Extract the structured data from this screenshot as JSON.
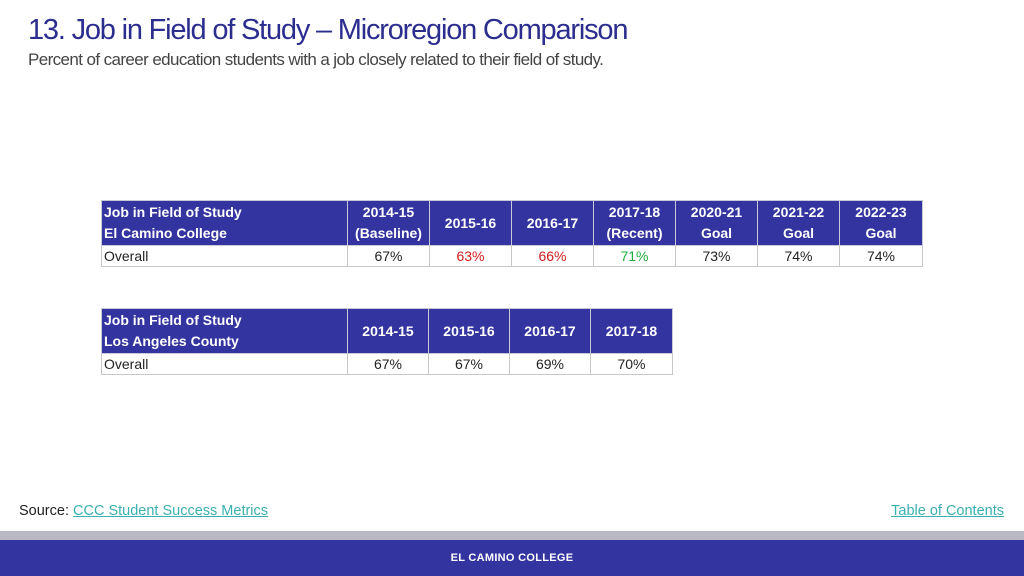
{
  "title": "13. Job in Field of Study – Microregion Comparison",
  "subtitle": "Percent of career education students with a job closely related to their field of study.",
  "table1": {
    "header_line1": "Job in Field of Study",
    "header_line2": "El Camino College",
    "columns": [
      {
        "line1": "2014-15",
        "line2": "(Baseline)"
      },
      {
        "line1": "2015-16",
        "line2": ""
      },
      {
        "line1": "2016-17",
        "line2": ""
      },
      {
        "line1": "2017-18",
        "line2": "(Recent)"
      },
      {
        "line1": "2020-21",
        "line2": "Goal"
      },
      {
        "line1": "2021-22",
        "line2": "Goal"
      },
      {
        "line1": "2022-23",
        "line2": "Goal"
      }
    ],
    "row_label": "Overall",
    "values": [
      "67%",
      "63%",
      "66%",
      "71%",
      "73%",
      "74%",
      "74%"
    ],
    "value_colors": [
      "#222222",
      "#d01c1c",
      "#d01c1c",
      "#1fad3a",
      "#222222",
      "#222222",
      "#222222"
    ]
  },
  "table2": {
    "header_line1": "Job in Field of Study",
    "header_line2": "Los Angeles County",
    "columns": [
      "2014-15",
      "2015-16",
      "2016-17",
      "2017-18"
    ],
    "row_label": "Overall",
    "values": [
      "67%",
      "67%",
      "69%",
      "70%"
    ]
  },
  "source": {
    "label": "Source:",
    "link_text": "CCC Student Success Metrics"
  },
  "toc_link": "Table of Contents",
  "footer": "EL CAMINO COLLEGE"
}
